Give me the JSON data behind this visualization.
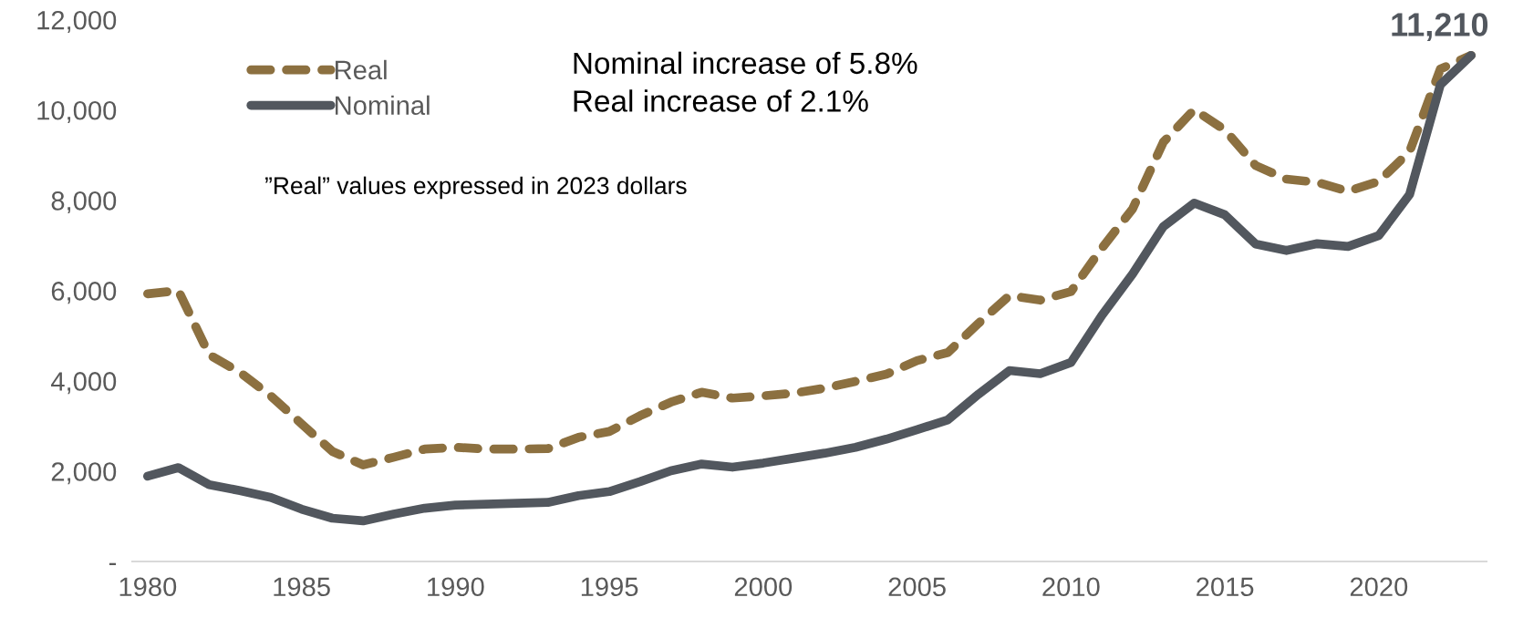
{
  "chart_data": {
    "type": "line",
    "x": [
      1980,
      1981,
      1982,
      1983,
      1984,
      1985,
      1986,
      1987,
      1988,
      1989,
      1990,
      1991,
      1992,
      1993,
      1994,
      1995,
      1996,
      1997,
      1998,
      1999,
      2000,
      2001,
      2002,
      2003,
      2004,
      2005,
      2006,
      2007,
      2008,
      2009,
      2010,
      2011,
      2012,
      2013,
      2014,
      2015,
      2016,
      2017,
      2018,
      2019,
      2020,
      2021,
      2022,
      2023
    ],
    "series": [
      {
        "name": "Real",
        "color": "#8c7040",
        "line_style": "dashed",
        "values": [
          5930,
          6000,
          4580,
          4190,
          3670,
          3050,
          2440,
          2140,
          2310,
          2490,
          2530,
          2490,
          2490,
          2500,
          2750,
          2880,
          3230,
          3530,
          3750,
          3620,
          3670,
          3730,
          3840,
          3990,
          4150,
          4450,
          4630,
          5280,
          5890,
          5790,
          5980,
          6940,
          7810,
          9290,
          10010,
          9560,
          8770,
          8470,
          8400,
          8200,
          8420,
          9080,
          10910,
          11210
        ]
      },
      {
        "name": "Nominal",
        "color": "#52575e",
        "line_style": "solid",
        "values": [
          1890,
          2080,
          1700,
          1570,
          1420,
          1160,
          960,
          900,
          1050,
          1180,
          1250,
          1270,
          1290,
          1310,
          1460,
          1550,
          1770,
          2010,
          2160,
          2090,
          2180,
          2290,
          2400,
          2530,
          2710,
          2920,
          3140,
          3710,
          4230,
          4160,
          4410,
          5450,
          6370,
          7420,
          7940,
          7680,
          7030,
          6890,
          7040,
          6980,
          7220,
          8130,
          10560,
          11210
        ]
      }
    ],
    "xlim": [
      1979.5,
      2023.5
    ],
    "xticks": [
      1980,
      1985,
      1990,
      1995,
      2000,
      2005,
      2010,
      2015,
      2020
    ],
    "ylim": [
      0,
      12000
    ],
    "yticks": [
      {
        "value": 0,
        "label": "-"
      },
      {
        "value": 2000,
        "label": "2,000"
      },
      {
        "value": 4000,
        "label": "4,000"
      },
      {
        "value": 6000,
        "label": "6,000"
      },
      {
        "value": 8000,
        "label": "8,000"
      },
      {
        "value": 10000,
        "label": "10,000"
      },
      {
        "value": 12000,
        "label": "12,000"
      }
    ],
    "annotations": [
      {
        "text": "11,210",
        "x": 2023,
        "y": 11210
      },
      "Nominal increase of 5.8%",
      "Real increase of 2.1%",
      "”Real” values expressed in 2023 dollars"
    ],
    "legend": "top left",
    "grid": false,
    "marker": "none"
  }
}
